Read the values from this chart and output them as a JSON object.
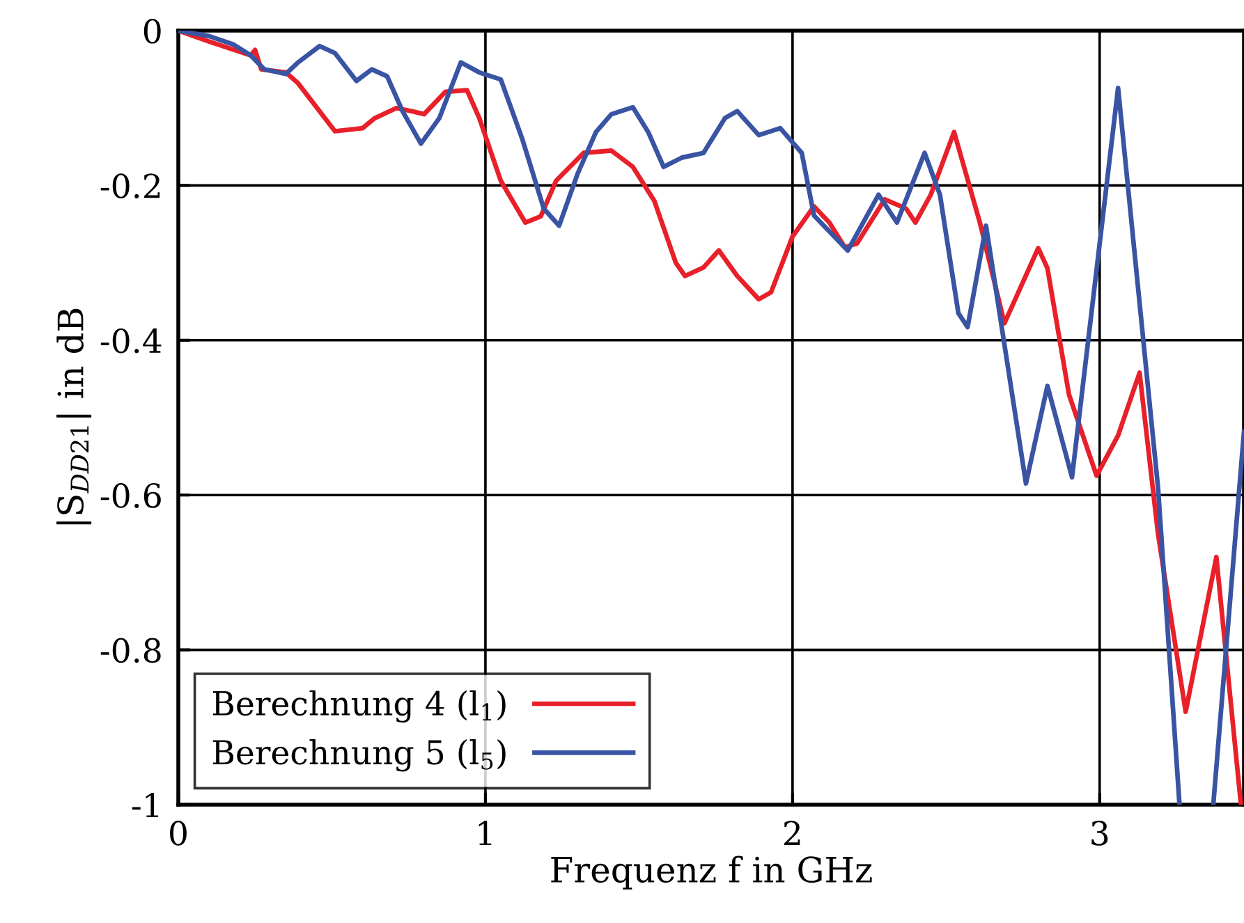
{
  "chart_data": {
    "type": "line",
    "xlabel": "Frequenz f in GHz",
    "ylabel": "|S$_{DD21}$| in dB",
    "xlim": [
      0,
      3.47
    ],
    "xticks": [
      0,
      1,
      2,
      3
    ],
    "ylim": [
      -1,
      0
    ],
    "yticks": [
      {
        "value": -1,
        "label": "-1"
      },
      {
        "value": -0.8,
        "label": "-0.8"
      },
      {
        "value": -0.6,
        "label": "-0.6"
      },
      {
        "value": -0.4,
        "label": "-0.4"
      },
      {
        "value": -0.2,
        "label": "-0.2"
      },
      0
    ],
    "grid": true,
    "legend": "bottom left",
    "line_style": "solid",
    "marker": "none",
    "series": [
      {
        "name": "Berechnung 4 (l$_{1}$)",
        "color": "#e8202a",
        "x": [
          0,
          0.1,
          0.236,
          0.25,
          0.27,
          0.35,
          0.39,
          0.51,
          0.6,
          0.64,
          0.71,
          0.76,
          0.8,
          0.87,
          0.94,
          0.98,
          1.05,
          1.13,
          1.18,
          1.23,
          1.32,
          1.41,
          1.48,
          1.55,
          1.62,
          1.65,
          1.71,
          1.76,
          1.82,
          1.89,
          1.93,
          2.0,
          2.07,
          2.12,
          2.17,
          2.21,
          2.3,
          2.37,
          2.4,
          2.45,
          2.526,
          2.61,
          2.69,
          2.8,
          2.83,
          2.9,
          2.99,
          3.06,
          3.13,
          3.19,
          3.28,
          3.38,
          3.46
        ],
        "values": [
          0,
          -0.014,
          -0.032,
          -0.025,
          -0.05,
          -0.054,
          -0.068,
          -0.13,
          -0.126,
          -0.113,
          -0.1,
          -0.104,
          -0.108,
          -0.079,
          -0.077,
          -0.113,
          -0.194,
          -0.248,
          -0.24,
          -0.194,
          -0.158,
          -0.155,
          -0.176,
          -0.22,
          -0.3,
          -0.317,
          -0.306,
          -0.284,
          -0.317,
          -0.347,
          -0.338,
          -0.266,
          -0.227,
          -0.248,
          -0.28,
          -0.275,
          -0.218,
          -0.23,
          -0.248,
          -0.212,
          -0.131,
          -0.248,
          -0.378,
          -0.281,
          -0.307,
          -0.47,
          -0.575,
          -0.523,
          -0.442,
          -0.65,
          -0.88,
          -0.68,
          -1.0
        ]
      },
      {
        "name": "Berechnung 5 (l$_{5}$)",
        "color": "#3a54a4",
        "x": [
          0,
          0.1,
          0.18,
          0.236,
          0.28,
          0.35,
          0.39,
          0.46,
          0.51,
          0.58,
          0.63,
          0.68,
          0.73,
          0.79,
          0.85,
          0.92,
          0.98,
          1.05,
          1.12,
          1.19,
          1.24,
          1.3,
          1.36,
          1.41,
          1.48,
          1.53,
          1.58,
          1.64,
          1.71,
          1.78,
          1.82,
          1.89,
          1.96,
          2.03,
          2.07,
          2.18,
          2.28,
          2.34,
          2.43,
          2.48,
          2.54,
          2.57,
          2.63,
          2.76,
          2.83,
          2.91,
          3.06,
          3.19,
          3.26,
          3.31,
          3.37,
          3.47
        ],
        "values": [
          0,
          -0.007,
          -0.018,
          -0.032,
          -0.05,
          -0.056,
          -0.041,
          -0.02,
          -0.029,
          -0.065,
          -0.05,
          -0.059,
          -0.104,
          -0.146,
          -0.113,
          -0.041,
          -0.054,
          -0.063,
          -0.14,
          -0.23,
          -0.252,
          -0.185,
          -0.131,
          -0.108,
          -0.099,
          -0.131,
          -0.176,
          -0.164,
          -0.158,
          -0.113,
          -0.104,
          -0.135,
          -0.126,
          -0.158,
          -0.239,
          -0.284,
          -0.212,
          -0.248,
          -0.158,
          -0.212,
          -0.365,
          -0.383,
          -0.252,
          -0.585,
          -0.459,
          -0.577,
          -0.074,
          -0.59,
          -1.0,
          null,
          -1.0,
          -0.518
        ]
      }
    ]
  }
}
